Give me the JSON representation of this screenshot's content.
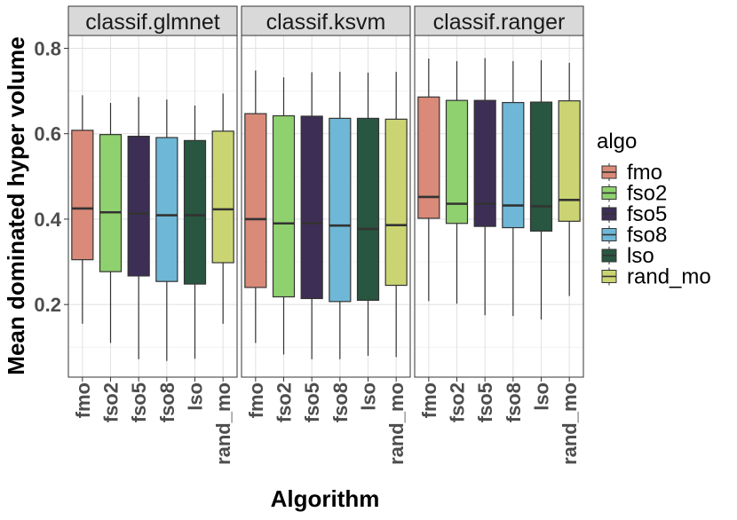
{
  "chart_data": {
    "type": "boxplot",
    "xlabel": "Algorithm",
    "ylabel": "Mean dominated hyper volume",
    "ylim": [
      0.03,
      0.83
    ],
    "yticks": [
      0.2,
      0.4,
      0.6,
      0.8
    ],
    "ytick_labels": [
      "0.2",
      "0.4",
      "0.6",
      "0.8"
    ],
    "grid": true,
    "legend": {
      "title": "algo",
      "position": "right",
      "entries": [
        "fmo",
        "fso2",
        "fso5",
        "fso8",
        "lso",
        "rand_mo"
      ]
    },
    "categories": [
      "fmo",
      "fso2",
      "fso5",
      "fso8",
      "lso",
      "rand_mo"
    ],
    "colors": [
      "#d98a78",
      "#8fd16e",
      "#3d2e55",
      "#6fb7d6",
      "#285640",
      "#cbd472"
    ],
    "facets": [
      {
        "title": "classif.glmnet",
        "boxes": [
          {
            "algo": "fmo",
            "min": 0.155,
            "q1": 0.305,
            "median": 0.425,
            "q3": 0.608,
            "max": 0.69
          },
          {
            "algo": "fso2",
            "min": 0.11,
            "q1": 0.277,
            "median": 0.416,
            "q3": 0.598,
            "max": 0.672
          },
          {
            "algo": "fso5",
            "min": 0.072,
            "q1": 0.267,
            "median": 0.413,
            "q3": 0.594,
            "max": 0.686
          },
          {
            "algo": "fso8",
            "min": 0.068,
            "q1": 0.254,
            "median": 0.409,
            "q3": 0.591,
            "max": 0.68
          },
          {
            "algo": "lso",
            "min": 0.073,
            "q1": 0.248,
            "median": 0.409,
            "q3": 0.584,
            "max": 0.666
          },
          {
            "algo": "rand_mo",
            "min": 0.155,
            "q1": 0.298,
            "median": 0.423,
            "q3": 0.606,
            "max": 0.694
          }
        ]
      },
      {
        "title": "classif.ksvm",
        "boxes": [
          {
            "algo": "fmo",
            "min": 0.11,
            "q1": 0.24,
            "median": 0.4,
            "q3": 0.647,
            "max": 0.748
          },
          {
            "algo": "fso2",
            "min": 0.083,
            "q1": 0.218,
            "median": 0.39,
            "q3": 0.642,
            "max": 0.732
          },
          {
            "algo": "fso5",
            "min": 0.072,
            "q1": 0.214,
            "median": 0.391,
            "q3": 0.641,
            "max": 0.744
          },
          {
            "algo": "fso8",
            "min": 0.072,
            "q1": 0.207,
            "median": 0.385,
            "q3": 0.636,
            "max": 0.745
          },
          {
            "algo": "lso",
            "min": 0.08,
            "q1": 0.21,
            "median": 0.377,
            "q3": 0.636,
            "max": 0.743
          },
          {
            "algo": "rand_mo",
            "min": 0.077,
            "q1": 0.245,
            "median": 0.386,
            "q3": 0.634,
            "max": 0.745
          }
        ]
      },
      {
        "title": "classif.ranger",
        "boxes": [
          {
            "algo": "fmo",
            "min": 0.208,
            "q1": 0.402,
            "median": 0.452,
            "q3": 0.686,
            "max": 0.776
          },
          {
            "algo": "fso2",
            "min": 0.202,
            "q1": 0.39,
            "median": 0.436,
            "q3": 0.678,
            "max": 0.77
          },
          {
            "algo": "fso5",
            "min": 0.175,
            "q1": 0.383,
            "median": 0.436,
            "q3": 0.678,
            "max": 0.777
          },
          {
            "algo": "fso8",
            "min": 0.173,
            "q1": 0.38,
            "median": 0.432,
            "q3": 0.673,
            "max": 0.77
          },
          {
            "algo": "lso",
            "min": 0.165,
            "q1": 0.372,
            "median": 0.43,
            "q3": 0.674,
            "max": 0.772
          },
          {
            "algo": "rand_mo",
            "min": 0.22,
            "q1": 0.395,
            "median": 0.445,
            "q3": 0.677,
            "max": 0.766
          }
        ]
      }
    ]
  }
}
